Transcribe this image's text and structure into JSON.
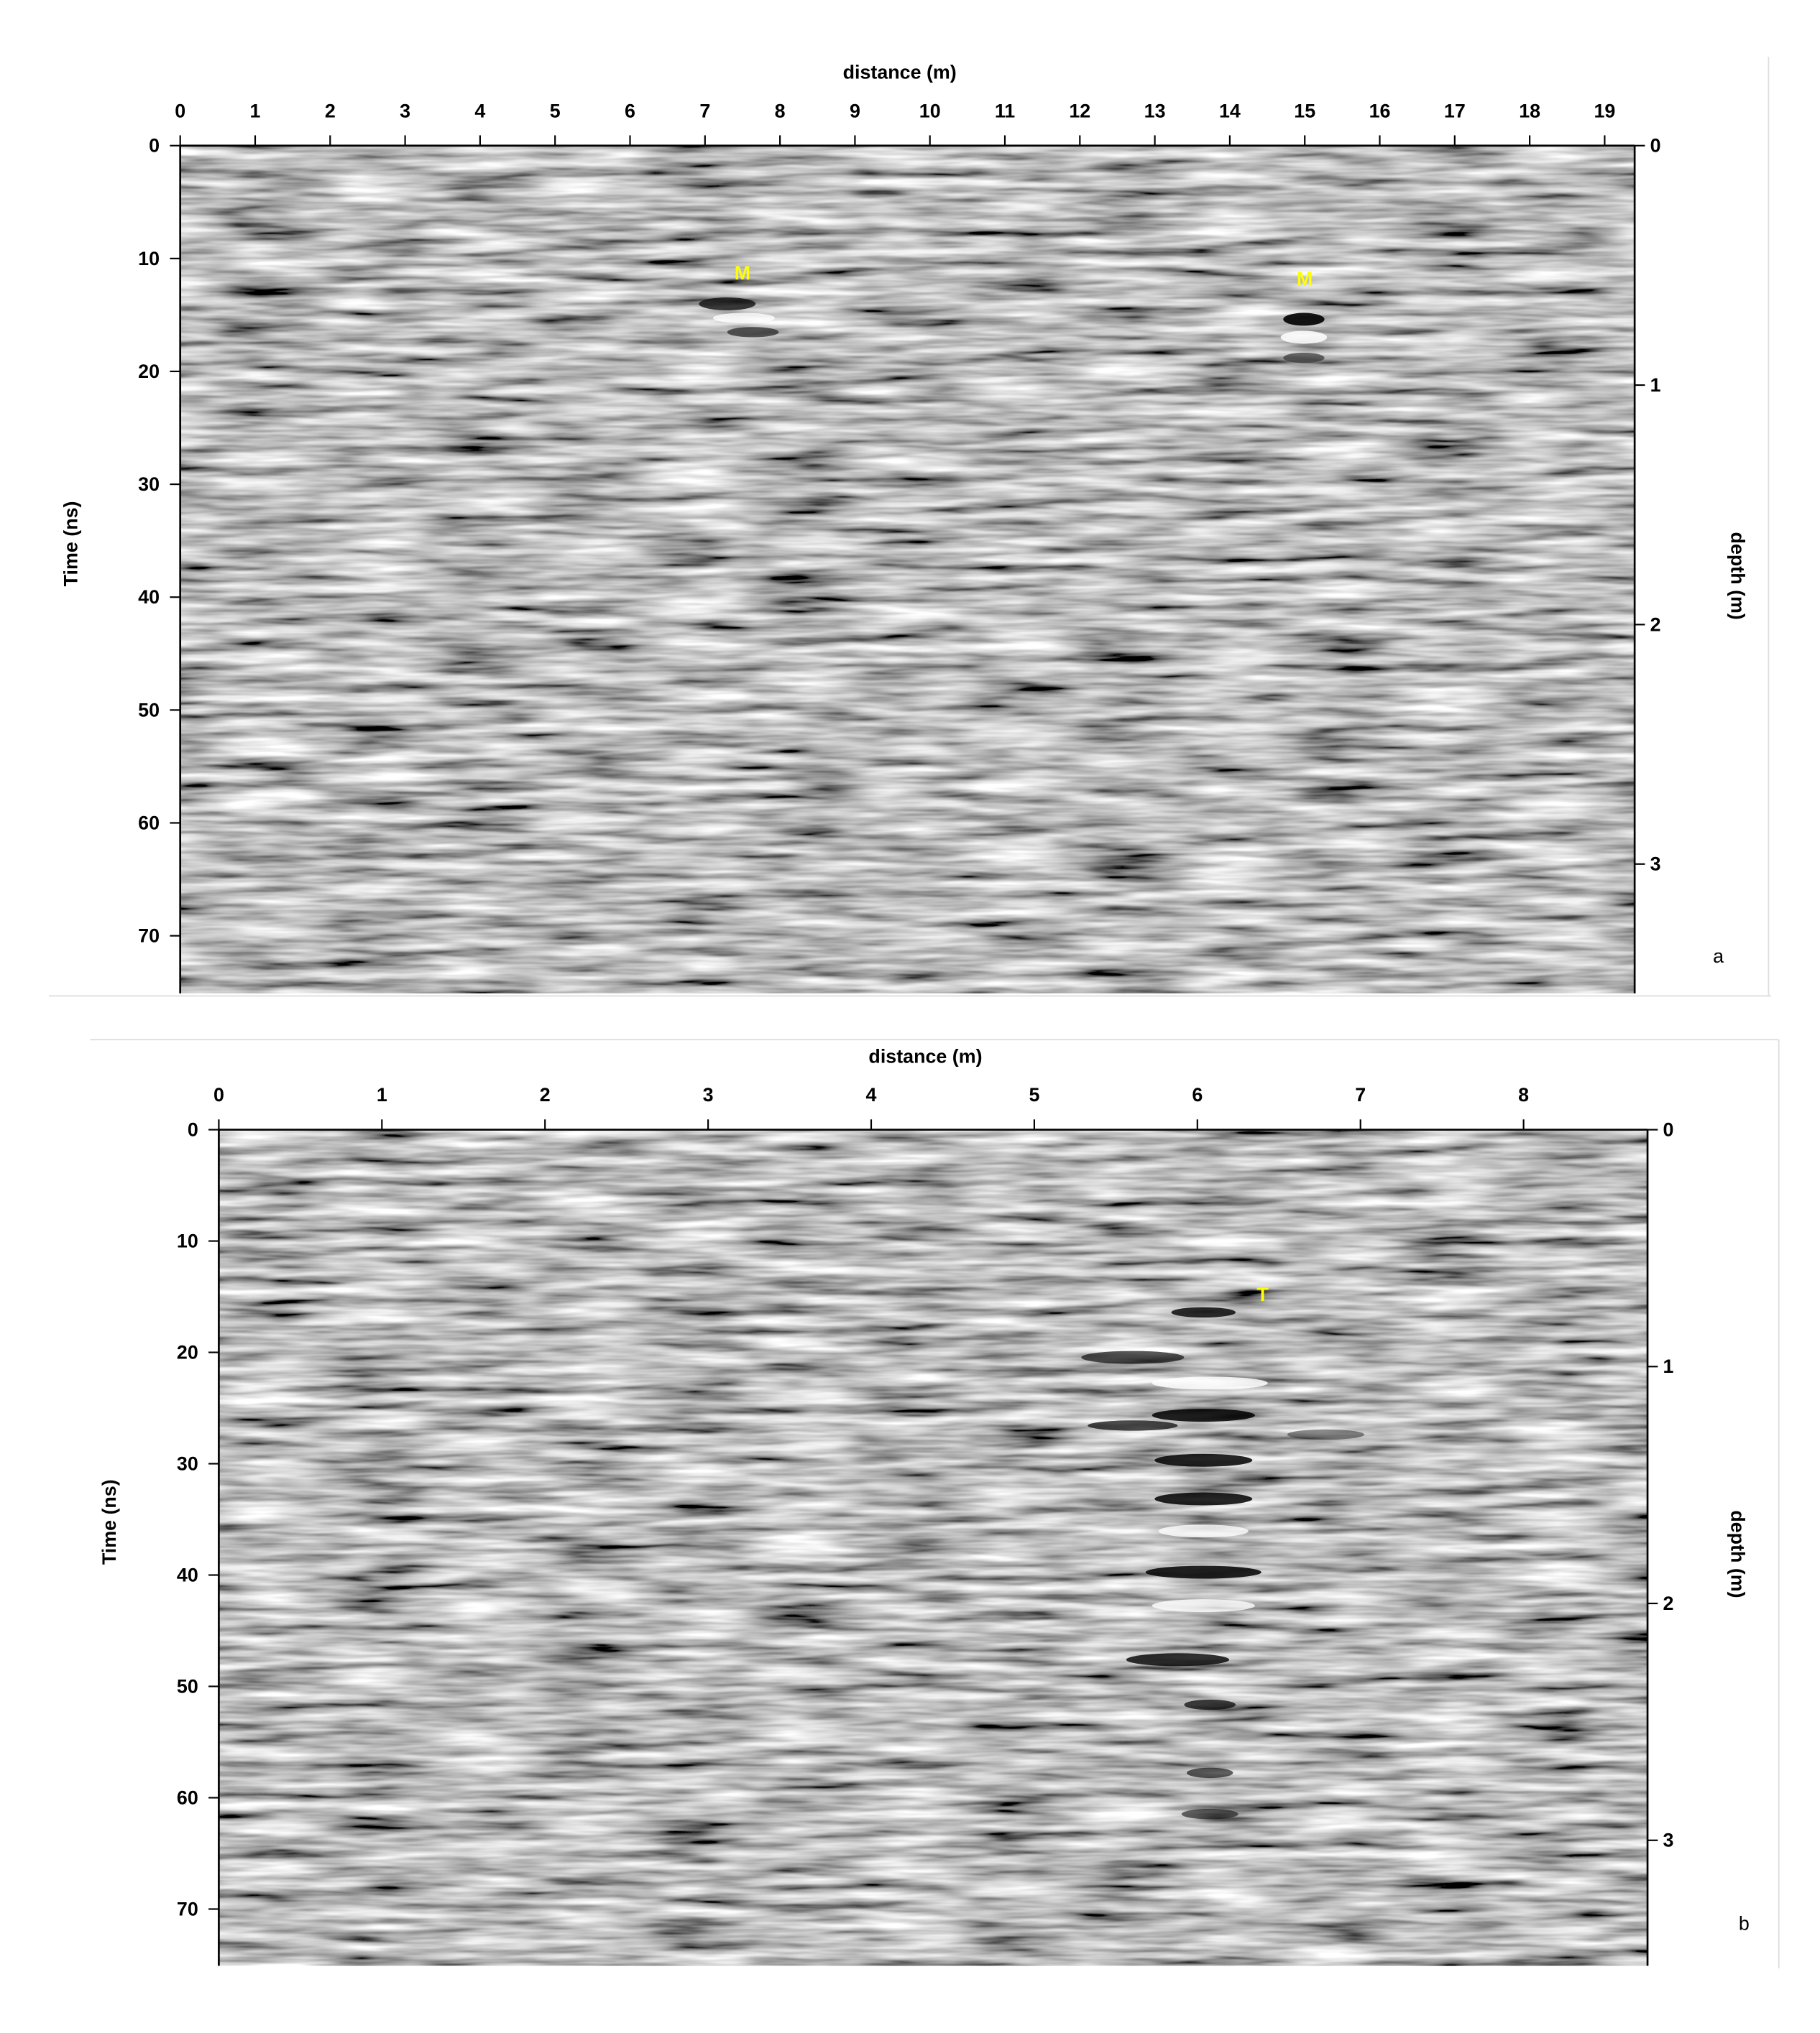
{
  "chart_data": [
    {
      "type": "radargram",
      "panel_label": "a",
      "x_label": "distance (m)",
      "y_label": "Time (ns)",
      "y2_label": "depth (m)",
      "xlim": [
        0,
        19.4
      ],
      "xticks": [
        0,
        1,
        2,
        3,
        4,
        5,
        6,
        7,
        8,
        9,
        10,
        11,
        12,
        13,
        14,
        15,
        16,
        17,
        18,
        19
      ],
      "ylim": [
        0,
        75.1
      ],
      "yticks": [
        0,
        10,
        20,
        30,
        40,
        50,
        60,
        70
      ],
      "y2lim": [
        0,
        3.54
      ],
      "y2ticks": [
        0,
        1,
        2,
        3
      ],
      "annotations": [
        {
          "text": "M",
          "x": 7.5,
          "y": 10.5
        },
        {
          "text": "M",
          "x": 15,
          "y": 11
        }
      ]
    },
    {
      "type": "radargram",
      "panel_label": "b",
      "x_label": "distance (m)",
      "y_label": "Time (ns)",
      "y2_label": "depth (m)",
      "xlim": [
        0,
        8.76
      ],
      "xticks": [
        0,
        1,
        2,
        3,
        4,
        5,
        6,
        7,
        8
      ],
      "ylim": [
        0,
        75.1
      ],
      "yticks": [
        0,
        10,
        20,
        30,
        40,
        50,
        60,
        70
      ],
      "y2lim": [
        0,
        3.53
      ],
      "y2ticks": [
        0,
        1,
        2,
        3
      ],
      "annotations": [
        {
          "text": "T",
          "x": 6.4,
          "y": 14
        }
      ]
    }
  ]
}
